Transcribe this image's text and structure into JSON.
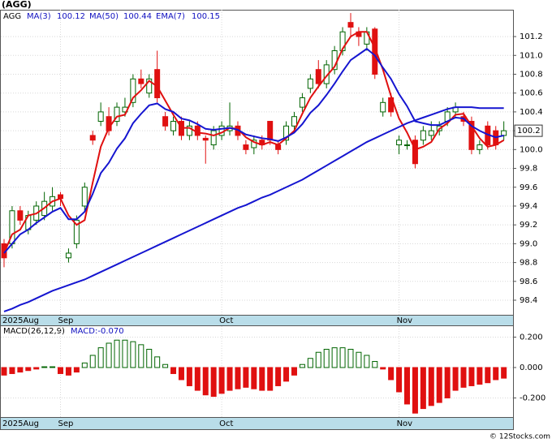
{
  "chart_data": [
    {
      "type": "candlestick",
      "title": "(AGG)",
      "symbol": "AGG",
      "symbol_color": "#008000",
      "categories": [
        "2025Aug",
        null,
        null,
        null,
        null,
        null,
        null,
        "Sep",
        null,
        null,
        null,
        null,
        null,
        null,
        null,
        null,
        null,
        null,
        null,
        null,
        null,
        null,
        null,
        null,
        null,
        null,
        null,
        "Oct",
        null,
        null,
        null,
        null,
        null,
        null,
        null,
        null,
        null,
        null,
        null,
        null,
        null,
        null,
        null,
        null,
        null,
        null,
        null,
        null,
        null,
        "Nov",
        null,
        null,
        null,
        null,
        null,
        null,
        null,
        null,
        null,
        null,
        null,
        null,
        null
      ],
      "open": [
        99.0,
        99.0,
        99.35,
        99.15,
        99.25,
        99.3,
        99.4,
        99.52,
        98.85,
        99.0,
        99.4,
        100.15,
        100.3,
        100.35,
        100.3,
        100.4,
        100.5,
        100.75,
        100.6,
        100.85,
        100.35,
        100.2,
        100.3,
        100.15,
        100.25,
        100.12,
        100.05,
        100.15,
        100.2,
        100.25,
        100.05,
        100.02,
        100.1,
        100.3,
        100.05,
        100.1,
        100.25,
        100.45,
        100.65,
        100.85,
        100.7,
        100.85,
        101.05,
        101.35,
        101.25,
        101.12,
        101.28,
        100.4,
        100.55,
        100.05,
        100.05,
        100.1,
        100.1,
        100.15,
        100.2,
        100.3,
        100.4,
        100.35,
        100.3,
        100.0,
        100.25,
        100.2,
        100.15
      ],
      "high": [
        99.05,
        99.4,
        99.4,
        99.35,
        99.45,
        99.55,
        99.6,
        99.55,
        98.95,
        99.3,
        99.65,
        100.2,
        100.5,
        100.45,
        100.5,
        100.55,
        100.8,
        100.85,
        100.8,
        101.05,
        100.4,
        100.35,
        100.35,
        100.3,
        100.3,
        100.15,
        100.25,
        100.3,
        100.5,
        100.3,
        100.1,
        100.15,
        100.15,
        100.3,
        100.1,
        100.3,
        100.4,
        100.6,
        100.8,
        100.95,
        100.95,
        101.1,
        101.3,
        101.45,
        101.3,
        101.3,
        101.3,
        100.55,
        100.6,
        100.15,
        100.1,
        100.15,
        100.25,
        100.3,
        100.3,
        100.45,
        100.5,
        100.4,
        100.35,
        100.1,
        100.3,
        100.25,
        100.3
      ],
      "low": [
        98.75,
        98.95,
        99.2,
        99.1,
        99.2,
        99.25,
        99.35,
        99.4,
        98.8,
        98.95,
        99.35,
        100.05,
        100.25,
        100.15,
        100.25,
        100.35,
        100.45,
        100.65,
        100.55,
        100.5,
        100.2,
        100.15,
        100.1,
        100.1,
        100.1,
        99.85,
        100.0,
        100.1,
        100.15,
        100.1,
        99.95,
        99.95,
        100.0,
        100.05,
        99.95,
        100.05,
        100.2,
        100.4,
        100.6,
        100.65,
        100.65,
        100.8,
        101.0,
        101.2,
        101.1,
        101.05,
        100.75,
        100.35,
        100.35,
        99.95,
        100.0,
        99.8,
        100.05,
        100.1,
        100.15,
        100.25,
        100.35,
        100.25,
        99.95,
        99.95,
        100.0,
        100.0,
        100.1
      ],
      "close": [
        98.85,
        99.35,
        99.25,
        99.3,
        99.4,
        99.45,
        99.5,
        99.48,
        98.9,
        99.25,
        99.6,
        100.1,
        100.4,
        100.2,
        100.45,
        100.45,
        100.75,
        100.7,
        100.75,
        100.55,
        100.25,
        100.3,
        100.15,
        100.25,
        100.15,
        100.1,
        100.2,
        100.25,
        100.25,
        100.15,
        100.0,
        100.1,
        100.05,
        100.1,
        100.0,
        100.25,
        100.35,
        100.55,
        100.75,
        100.7,
        100.9,
        101.05,
        101.25,
        101.3,
        101.2,
        101.25,
        100.8,
        100.5,
        100.4,
        100.1,
        100.05,
        99.85,
        100.2,
        100.2,
        100.25,
        100.4,
        100.45,
        100.3,
        100.0,
        100.05,
        100.05,
        100.05,
        100.2
      ],
      "up_color": "#006400",
      "down_color": "#e01010",
      "series": [
        {
          "name": "MA(3)",
          "color": "#e01010",
          "last": 100.12,
          "values": [
            98.9,
            99.1,
            99.15,
            99.3,
            99.32,
            99.38,
            99.45,
            99.48,
            99.3,
            99.2,
            99.25,
            99.65,
            100.03,
            100.23,
            100.35,
            100.37,
            100.55,
            100.63,
            100.73,
            100.67,
            100.52,
            100.37,
            100.23,
            100.23,
            100.18,
            100.17,
            100.15,
            100.18,
            100.23,
            100.22,
            100.13,
            100.08,
            100.05,
            100.08,
            100.05,
            100.12,
            100.2,
            100.38,
            100.55,
            100.67,
            100.78,
            100.88,
            101.07,
            101.2,
            101.25,
            101.25,
            101.08,
            100.85,
            100.57,
            100.33,
            100.18,
            100.0,
            100.03,
            100.08,
            100.22,
            100.28,
            100.37,
            100.38,
            100.25,
            100.12,
            100.03,
            100.05,
            100.1
          ]
        },
        {
          "name": "MA(50)",
          "color": "#1515d0",
          "last": 100.44,
          "values": [
            98.28,
            98.31,
            98.35,
            98.38,
            98.42,
            98.46,
            98.5,
            98.53,
            98.56,
            98.59,
            98.62,
            98.66,
            98.7,
            98.74,
            98.78,
            98.82,
            98.86,
            98.9,
            98.94,
            98.98,
            99.02,
            99.06,
            99.1,
            99.14,
            99.18,
            99.22,
            99.26,
            99.3,
            99.34,
            99.38,
            99.41,
            99.45,
            99.49,
            99.52,
            99.56,
            99.6,
            99.64,
            99.68,
            99.73,
            99.78,
            99.83,
            99.88,
            99.93,
            99.98,
            100.03,
            100.08,
            100.12,
            100.16,
            100.2,
            100.24,
            100.28,
            100.31,
            100.34,
            100.37,
            100.4,
            100.43,
            100.45,
            100.45,
            100.45,
            100.44,
            100.44,
            100.44,
            100.44
          ]
        },
        {
          "name": "EMA(7)",
          "color": "#1515d0",
          "last": 100.15,
          "values": [
            98.9,
            99.0,
            99.1,
            99.15,
            99.22,
            99.28,
            99.34,
            99.38,
            99.26,
            99.26,
            99.34,
            99.53,
            99.75,
            99.86,
            100.01,
            100.12,
            100.28,
            100.38,
            100.47,
            100.49,
            100.43,
            100.4,
            100.33,
            100.31,
            100.27,
            100.22,
            100.21,
            100.22,
            100.23,
            100.21,
            100.16,
            100.14,
            100.12,
            100.11,
            100.09,
            100.13,
            100.18,
            100.27,
            100.39,
            100.47,
            100.58,
            100.7,
            100.83,
            100.95,
            101.01,
            101.07,
            101.0,
            100.87,
            100.75,
            100.59,
            100.46,
            100.3,
            100.28,
            100.26,
            100.26,
            100.3,
            100.34,
            100.33,
            100.25,
            100.2,
            100.16,
            100.13,
            100.15
          ]
        }
      ],
      "ylim": [
        98.245,
        101.485
      ],
      "yticks": [
        98.4,
        98.6,
        98.8,
        {
          "value": 99,
          "label": "99.0"
        },
        99.2,
        99.4,
        99.6,
        99.8,
        {
          "value": 100,
          "label": "100.0"
        },
        100.2,
        100.4,
        100.6,
        100.8,
        {
          "value": 101,
          "label": "101.0"
        },
        101.2
      ],
      "last_label": 100.2,
      "grid": true,
      "credit": "© 12Stocks.com"
    },
    {
      "type": "bar",
      "title": "MACD(26,12,9)",
      "subtitle": "MACD:-0.070",
      "categories": [
        "2025Aug",
        null,
        null,
        null,
        null,
        null,
        null,
        "Sep",
        null,
        null,
        null,
        null,
        null,
        null,
        null,
        null,
        null,
        null,
        null,
        null,
        null,
        null,
        null,
        null,
        null,
        null,
        null,
        "Oct",
        null,
        null,
        null,
        null,
        null,
        null,
        null,
        null,
        null,
        null,
        null,
        null,
        null,
        null,
        null,
        null,
        null,
        null,
        null,
        null,
        null,
        "Nov",
        null,
        null,
        null,
        null,
        null,
        null,
        null,
        null,
        null,
        null,
        null,
        null,
        null
      ],
      "values": [
        -0.05,
        -0.04,
        -0.03,
        -0.02,
        -0.01,
        0.005,
        0.005,
        -0.04,
        -0.05,
        -0.03,
        0.03,
        0.08,
        0.13,
        0.16,
        0.18,
        0.18,
        0.17,
        0.15,
        0.12,
        0.07,
        0.02,
        -0.04,
        -0.08,
        -0.12,
        -0.15,
        -0.18,
        -0.19,
        -0.17,
        -0.15,
        -0.14,
        -0.13,
        -0.14,
        -0.15,
        -0.15,
        -0.12,
        -0.09,
        -0.05,
        0.02,
        0.06,
        0.1,
        0.12,
        0.13,
        0.13,
        0.12,
        0.1,
        0.08,
        0.04,
        -0.01,
        -0.08,
        -0.16,
        -0.24,
        -0.3,
        -0.27,
        -0.25,
        -0.23,
        -0.2,
        -0.15,
        -0.13,
        -0.12,
        -0.11,
        -0.1,
        -0.08,
        -0.07
      ],
      "pos_color": "#006400",
      "neg_color": "#e01010",
      "ylim": [
        -0.331,
        0.272
      ],
      "yticks": [
        {
          "value": 0.2,
          "label": "0.200"
        },
        {
          "value": 0,
          "label": "0.000"
        },
        {
          "value": -0.2,
          "label": "-0.200"
        }
      ],
      "grid": true
    }
  ]
}
